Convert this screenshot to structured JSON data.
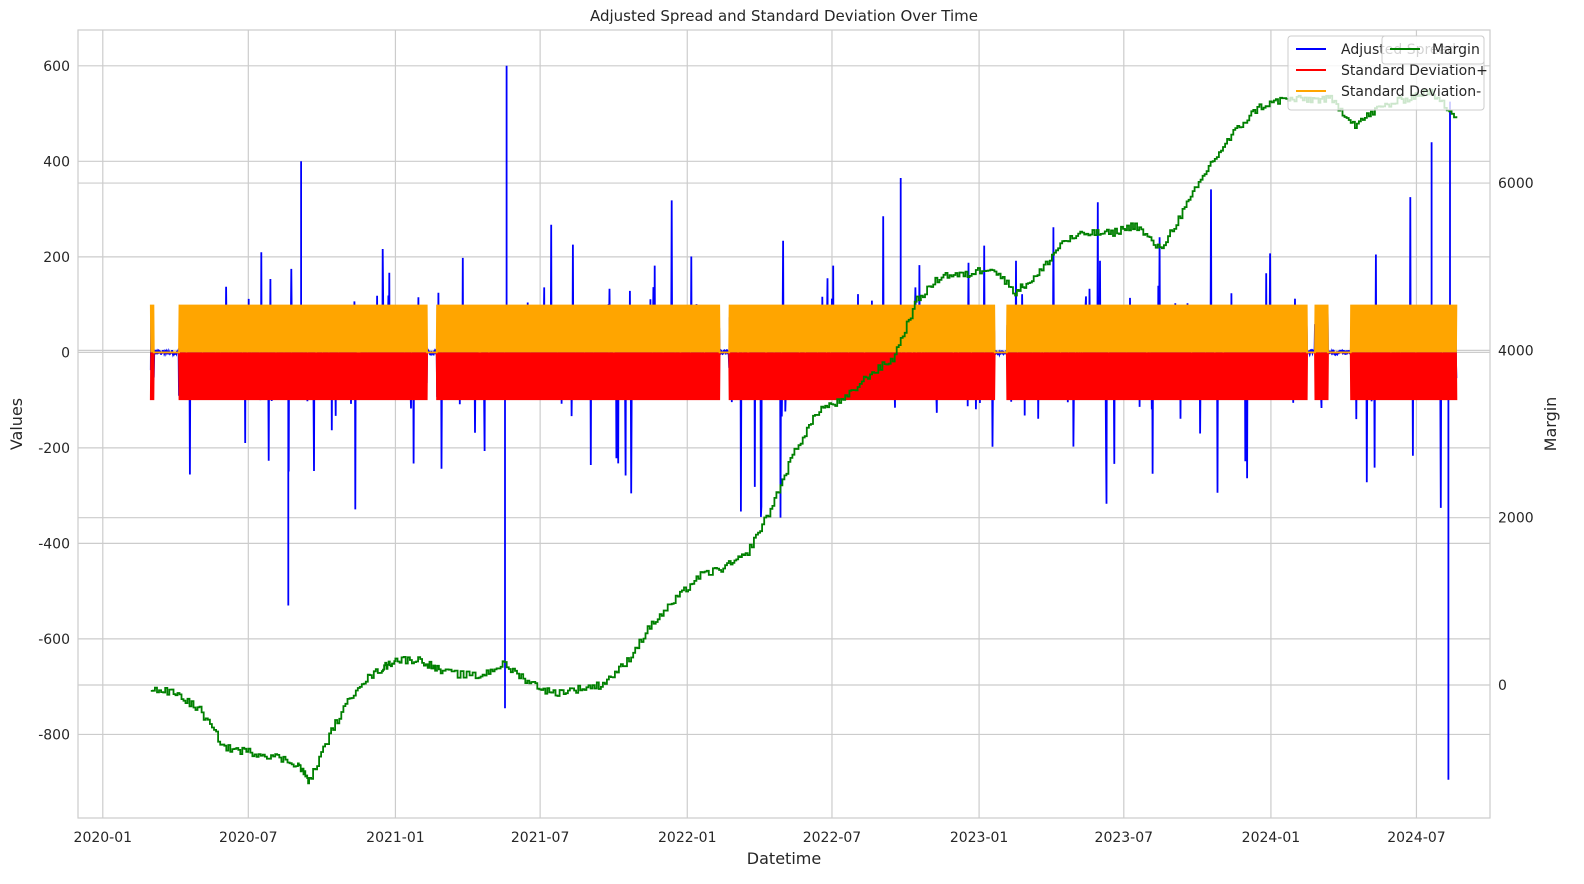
{
  "chart_data": {
    "type": "line",
    "title": "Adjusted Spread and Standard Deviation Over Time",
    "xlabel": "Datetime",
    "ylabel": "Values",
    "y2label": "Margin",
    "x_ticks": [
      "2020-01",
      "2020-07",
      "2021-01",
      "2021-07",
      "2022-01",
      "2022-07",
      "2023-01",
      "2023-07",
      "2024-01",
      "2024-07"
    ],
    "y_ticks": [
      600,
      400,
      200,
      0,
      -200,
      -400,
      -600,
      -800
    ],
    "y2_ticks": [
      6000,
      4000,
      2000,
      0
    ],
    "ylim": [
      -975,
      675
    ],
    "y2lim": [
      -1590,
      7830
    ],
    "xlim": [
      "2019-12-01",
      "2024-10-01"
    ],
    "grid": true,
    "legend_position": "top-right",
    "legend_left": [
      "Adjusted Spread",
      "Standard Deviation+",
      "Standard Deviation-"
    ],
    "legend_right": [
      "Margin"
    ],
    "colors": {
      "adjusted_spread": "#0000ff",
      "std_plus": "#ff0000",
      "std_minus": "#ffa500",
      "margin": "#008000",
      "grid": "#cccccc"
    },
    "series": [
      {
        "name": "Adjusted Spread",
        "axis": "left",
        "color": "#0000ff",
        "x_range": [
          "2020-03-01",
          "2024-08-20"
        ],
        "range": [
          -895,
          600
        ],
        "typical_band": [
          -100,
          100
        ]
      },
      {
        "name": "Standard Deviation+",
        "axis": "left",
        "color": "#ff0000",
        "x_range": [
          "2020-03-01",
          "2024-08-20"
        ],
        "range": [
          -100,
          0
        ]
      },
      {
        "name": "Standard Deviation-",
        "axis": "left",
        "color": "#ffa500",
        "x_range": [
          "2020-03-01",
          "2024-08-20"
        ],
        "range": [
          0,
          100
        ]
      },
      {
        "name": "Margin",
        "axis": "right",
        "color": "#008000",
        "x": [
          "2020-03-01",
          "2020-04-01",
          "2020-05-01",
          "2020-06-01",
          "2020-07-01",
          "2020-08-01",
          "2020-09-01",
          "2020-09-15",
          "2020-10-15",
          "2020-11-15",
          "2020-12-15",
          "2021-01-01",
          "2021-02-01",
          "2021-03-01",
          "2021-04-15",
          "2021-05-15",
          "2021-06-15",
          "2021-07-15",
          "2021-08-15",
          "2021-09-15",
          "2021-10-15",
          "2021-11-15",
          "2021-12-15",
          "2022-01-15",
          "2022-02-15",
          "2022-03-15",
          "2022-04-15",
          "2022-05-15",
          "2022-06-15",
          "2022-07-15",
          "2022-08-15",
          "2022-09-15",
          "2022-10-15",
          "2022-11-15",
          "2022-12-15",
          "2023-01-15",
          "2023-02-15",
          "2023-03-15",
          "2023-04-15",
          "2023-05-15",
          "2023-06-15",
          "2023-07-15",
          "2023-08-15",
          "2023-09-15",
          "2023-10-15",
          "2023-11-15",
          "2023-12-15",
          "2024-01-15",
          "2024-02-15",
          "2024-03-15",
          "2024-04-15",
          "2024-05-15",
          "2024-06-15",
          "2024-07-15",
          "2024-08-20"
        ],
        "values": [
          -50,
          -100,
          -300,
          -750,
          -800,
          -850,
          -950,
          -1150,
          -500,
          0,
          200,
          300,
          300,
          150,
          100,
          250,
          50,
          -100,
          -50,
          0,
          250,
          700,
          1000,
          1300,
          1400,
          1550,
          2100,
          2800,
          3300,
          3400,
          3700,
          3900,
          4600,
          4900,
          4900,
          5000,
          4700,
          4900,
          5300,
          5400,
          5400,
          5500,
          5200,
          5700,
          6200,
          6600,
          6900,
          7000,
          7000,
          7000,
          6700,
          6900,
          7000,
          7100,
          6800
        ]
      }
    ]
  }
}
